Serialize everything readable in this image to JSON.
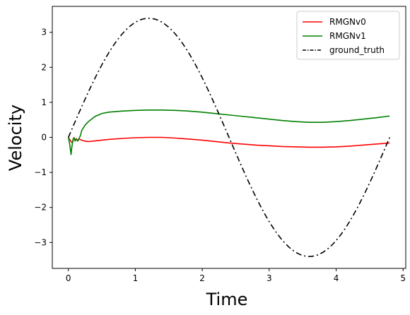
{
  "chart_data": {
    "type": "line",
    "title": "",
    "xlabel": "Time",
    "ylabel": "Velocity",
    "xlim": [
      -0.24,
      5.04
    ],
    "ylim": [
      -3.74,
      3.74
    ],
    "xticks": [
      0,
      1,
      2,
      3,
      4,
      5
    ],
    "yticks": [
      -3,
      -2,
      -1,
      0,
      1,
      2,
      3
    ],
    "grid": false,
    "legend_position": "top-right",
    "series": [
      {
        "name": "RMGNv0",
        "color": "#ff0000",
        "style": "solid",
        "x": [
          0,
          0.04,
          0.06,
          0.08,
          0.1,
          0.12,
          0.14,
          0.16,
          0.18,
          0.2,
          0.25,
          0.3,
          0.4,
          0.6,
          0.8,
          1.0,
          1.2,
          1.4,
          1.6,
          1.8,
          2.0,
          2.2,
          2.4,
          2.6,
          2.8,
          3.0,
          3.2,
          3.4,
          3.6,
          3.8,
          4.0,
          4.2,
          4.4,
          4.6,
          4.8
        ],
        "y": [
          0,
          -0.12,
          -0.16,
          -0.02,
          -0.08,
          -0.04,
          -0.1,
          -0.05,
          -0.06,
          -0.08,
          -0.11,
          -0.12,
          -0.1,
          -0.06,
          -0.03,
          -0.01,
          0.0,
          0.0,
          -0.02,
          -0.05,
          -0.08,
          -0.12,
          -0.16,
          -0.19,
          -0.22,
          -0.24,
          -0.26,
          -0.27,
          -0.28,
          -0.28,
          -0.27,
          -0.25,
          -0.22,
          -0.19,
          -0.16
        ]
      },
      {
        "name": "RMGNv1",
        "color": "#008000",
        "style": "solid",
        "x": [
          0,
          0.02,
          0.04,
          0.05,
          0.07,
          0.09,
          0.1,
          0.12,
          0.14,
          0.16,
          0.18,
          0.2,
          0.25,
          0.3,
          0.4,
          0.5,
          0.6,
          0.8,
          1.0,
          1.2,
          1.4,
          1.6,
          1.8,
          2.0,
          2.2,
          2.4,
          2.6,
          2.8,
          3.0,
          3.2,
          3.4,
          3.6,
          3.8,
          4.0,
          4.2,
          4.4,
          4.6,
          4.8
        ],
        "y": [
          0,
          -0.2,
          -0.5,
          -0.3,
          -0.05,
          -0.02,
          -0.1,
          -0.06,
          -0.1,
          -0.03,
          0.05,
          0.2,
          0.35,
          0.45,
          0.6,
          0.68,
          0.72,
          0.75,
          0.77,
          0.78,
          0.78,
          0.77,
          0.75,
          0.72,
          0.68,
          0.64,
          0.6,
          0.56,
          0.52,
          0.48,
          0.45,
          0.43,
          0.43,
          0.45,
          0.48,
          0.52,
          0.56,
          0.61
        ]
      },
      {
        "name": "ground_truth",
        "color": "#000000",
        "style": "dashdot",
        "function": "3.4*sin(2*pi*t/4.8)",
        "x_range": [
          0,
          4.8
        ],
        "points": 121
      }
    ]
  }
}
